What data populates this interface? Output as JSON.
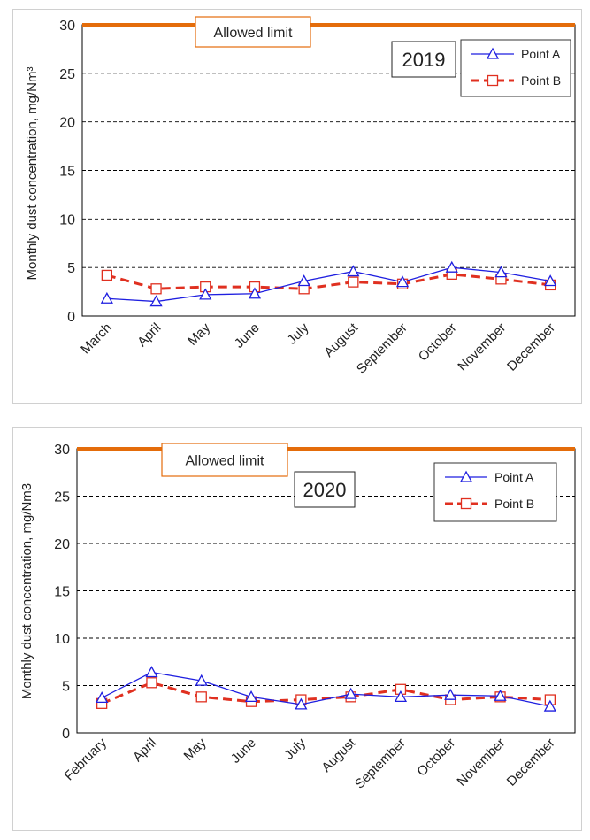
{
  "chart_data": [
    {
      "type": "line",
      "title": "2019",
      "xlabel": "",
      "ylabel": "Monthly dust concentration, mg/Nm³",
      "ylim": [
        0,
        30
      ],
      "yticks": [
        0,
        5,
        10,
        15,
        20,
        25,
        30
      ],
      "grid": true,
      "legend_position": "top-right",
      "limit": {
        "value": 30,
        "label": "Allowed limit",
        "color": "#E46C0A"
      },
      "categories": [
        "March",
        "April",
        "May",
        "June",
        "July",
        "August",
        "September",
        "October",
        "November",
        "December"
      ],
      "series": [
        {
          "name": "Point A",
          "color": "#1F1FE0",
          "marker": "triangle",
          "style": "solid",
          "values": [
            1.8,
            1.5,
            2.2,
            2.3,
            3.6,
            4.6,
            3.5,
            5.0,
            4.5,
            3.6
          ]
        },
        {
          "name": "Point B",
          "color": "#E03020",
          "marker": "square",
          "style": "dashed",
          "values": [
            4.2,
            2.8,
            3.0,
            3.0,
            2.8,
            3.5,
            3.3,
            4.3,
            3.8,
            3.2
          ]
        }
      ]
    },
    {
      "type": "line",
      "title": "2020",
      "xlabel": "",
      "ylabel": "Monthly dust concentration, mg/Nm3",
      "ylim": [
        0,
        30
      ],
      "yticks": [
        0,
        5,
        10,
        15,
        20,
        25,
        30
      ],
      "grid": true,
      "legend_position": "top-right",
      "limit": {
        "value": 30,
        "label": "Allowed limit",
        "color": "#E46C0A"
      },
      "categories": [
        "February",
        "April",
        "May",
        "June",
        "July",
        "August",
        "September",
        "October",
        "November",
        "December"
      ],
      "series": [
        {
          "name": "Point A",
          "color": "#1F1FE0",
          "marker": "triangle",
          "style": "solid",
          "values": [
            3.7,
            6.4,
            5.5,
            3.8,
            3.0,
            4.1,
            3.8,
            4.0,
            3.9,
            2.8
          ]
        },
        {
          "name": "Point B",
          "color": "#E03020",
          "marker": "square",
          "style": "dashed",
          "values": [
            3.1,
            5.3,
            3.8,
            3.3,
            3.5,
            3.8,
            4.6,
            3.5,
            3.8,
            3.5
          ]
        }
      ]
    }
  ]
}
